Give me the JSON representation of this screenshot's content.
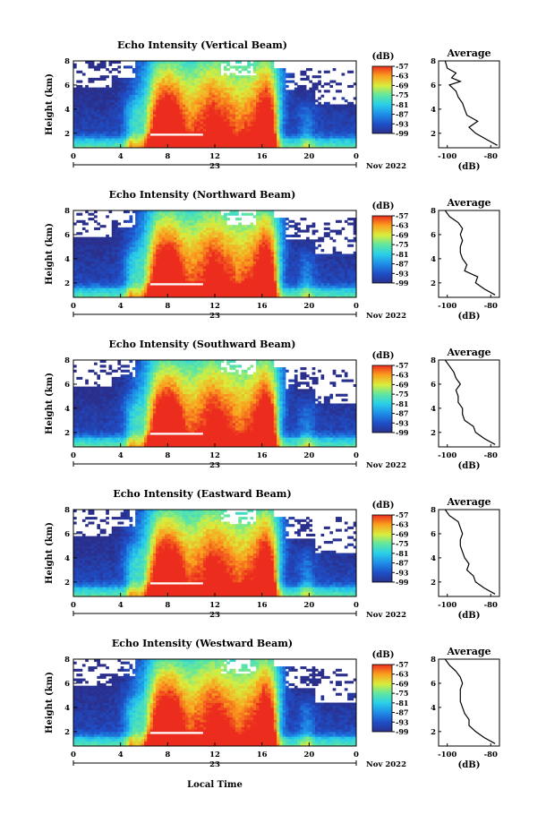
{
  "chart_data": {
    "type": "heatmap",
    "common": {
      "x_ticks": [
        "0",
        "4",
        "8",
        "12",
        "16",
        "20",
        "0"
      ],
      "x_day": "23",
      "x_month": "Nov 2022",
      "x_label": "Local Time",
      "y_label": "Height (km)",
      "y_ticks": [
        "2",
        "4",
        "6",
        "8"
      ],
      "xlim_hours": [
        0,
        24
      ],
      "ylim_km": [
        0.8,
        8.0
      ],
      "colorbar_title": "(dB)",
      "colorbar_ticks": [
        "-57",
        "-63",
        "-69",
        "-75",
        "-81",
        "-87",
        "-93",
        "-99"
      ],
      "colorbar_range_db": [
        -99,
        -57
      ],
      "avg_title": "Average",
      "avg_xlabel": "(dB)",
      "avg_x_ticks": [
        "-100",
        "-80"
      ],
      "avg_xlim": [
        -104,
        -76
      ],
      "avg_y_ticks": [
        "2",
        "4",
        "6",
        "8"
      ]
    },
    "panels": [
      {
        "title": "Echo Intensity (Vertical Beam)",
        "beam": "vertical",
        "average_profile": [
          [
            1.0,
            -77
          ],
          [
            1.5,
            -82
          ],
          [
            2.0,
            -87
          ],
          [
            2.5,
            -90
          ],
          [
            3.0,
            -86
          ],
          [
            3.5,
            -91
          ],
          [
            4.0,
            -92
          ],
          [
            4.5,
            -93
          ],
          [
            5.0,
            -95
          ],
          [
            5.5,
            -96
          ],
          [
            6.0,
            -99
          ],
          [
            6.3,
            -94
          ],
          [
            6.6,
            -98
          ],
          [
            7.0,
            -96
          ],
          [
            7.4,
            -100
          ],
          [
            8.0,
            -101
          ]
        ]
      },
      {
        "title": "Echo Intensity (Northward Beam)",
        "beam": "northward",
        "average_profile": [
          [
            1.0,
            -78
          ],
          [
            1.5,
            -83
          ],
          [
            2.0,
            -87
          ],
          [
            2.5,
            -86
          ],
          [
            3.0,
            -92
          ],
          [
            3.5,
            -91
          ],
          [
            4.0,
            -93
          ],
          [
            4.5,
            -94
          ],
          [
            5.0,
            -94
          ],
          [
            5.5,
            -93
          ],
          [
            6.0,
            -94
          ],
          [
            6.5,
            -93
          ],
          [
            7.0,
            -95
          ],
          [
            7.5,
            -99
          ],
          [
            8.0,
            -101
          ]
        ]
      },
      {
        "title": "Echo Intensity (Southward Beam)",
        "beam": "southward",
        "average_profile": [
          [
            1.0,
            -78
          ],
          [
            1.5,
            -83
          ],
          [
            2.0,
            -87
          ],
          [
            2.5,
            -88
          ],
          [
            3.0,
            -92
          ],
          [
            3.5,
            -93
          ],
          [
            4.0,
            -93
          ],
          [
            4.5,
            -95
          ],
          [
            5.0,
            -95
          ],
          [
            5.5,
            -96
          ],
          [
            6.0,
            -94
          ],
          [
            6.5,
            -96
          ],
          [
            7.0,
            -97
          ],
          [
            7.5,
            -99
          ],
          [
            8.0,
            -101
          ]
        ]
      },
      {
        "title": "Echo Intensity (Eastward Beam)",
        "beam": "eastward",
        "average_profile": [
          [
            1.0,
            -78
          ],
          [
            1.5,
            -83
          ],
          [
            2.0,
            -87
          ],
          [
            2.5,
            -88
          ],
          [
            3.0,
            -91
          ],
          [
            3.5,
            -90
          ],
          [
            4.0,
            -92
          ],
          [
            4.5,
            -93
          ],
          [
            5.0,
            -94
          ],
          [
            5.5,
            -94
          ],
          [
            6.0,
            -93
          ],
          [
            6.5,
            -94
          ],
          [
            7.0,
            -95
          ],
          [
            7.5,
            -99
          ],
          [
            8.0,
            -101
          ]
        ]
      },
      {
        "title": "Echo Intensity (Westward Beam)",
        "beam": "westward",
        "average_profile": [
          [
            1.0,
            -78
          ],
          [
            1.5,
            -83
          ],
          [
            2.0,
            -87
          ],
          [
            2.5,
            -90
          ],
          [
            3.0,
            -90
          ],
          [
            3.5,
            -92
          ],
          [
            4.0,
            -93
          ],
          [
            4.5,
            -94
          ],
          [
            5.0,
            -94
          ],
          [
            5.5,
            -94
          ],
          [
            6.0,
            -93
          ],
          [
            6.5,
            -94
          ],
          [
            7.0,
            -96
          ],
          [
            7.5,
            -99
          ],
          [
            8.0,
            -101
          ]
        ]
      }
    ]
  }
}
